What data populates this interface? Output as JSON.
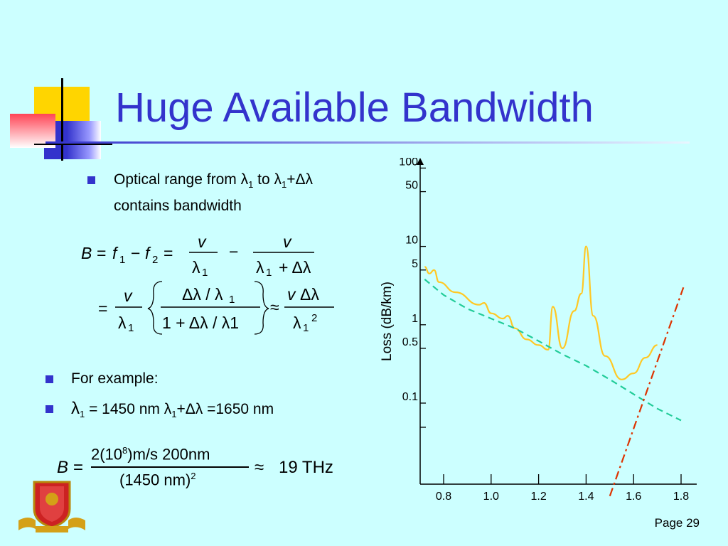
{
  "slide": {
    "title": "Huge Available Bandwidth",
    "bullet1": {
      "text_a": "Optical range from λ",
      "sub_a": "1",
      "text_b": " to λ",
      "sub_b": "1",
      "text_c": "+Δλ",
      "line2": "contains bandwidth"
    },
    "bullet2": "For example:",
    "bullet3": {
      "lambda": "λ",
      "sub": "1",
      "text_a": " = 1450 nm λ",
      "sub_b": "1",
      "text_b": "+Δλ =1650 nm"
    },
    "eq_example": {
      "lhs": "B =",
      "numerator": "2(10",
      "exp": "8",
      "numerator_rest": ")m/s 200nm",
      "denominator": "(1450 nm)",
      "den_exp": "2",
      "approx": "≈",
      "result": "19 THz"
    },
    "page_label": "Page 29",
    "colors": {
      "title": "#3333cc",
      "bullet": "#3333cc",
      "background": "#ccffff"
    }
  },
  "chart_data": {
    "type": "line",
    "xlabel": "",
    "ylabel": "Loss (dB/km)",
    "x_ticks": [
      "0.8",
      "1.0",
      "1.2",
      "1.4",
      "1.6",
      "1.8"
    ],
    "y_ticks": [
      "100",
      "50",
      "10",
      "5",
      "1",
      "0.5",
      "0.1"
    ],
    "y_scale": "log",
    "series": [
      {
        "color": "#ffc824",
        "style": "solid",
        "points": [
          [
            0.72,
            5.5
          ],
          [
            0.74,
            4.5
          ],
          [
            0.76,
            5.0
          ],
          [
            0.78,
            3.5
          ],
          [
            0.85,
            2.6
          ],
          [
            0.95,
            1.8
          ],
          [
            0.97,
            1.9
          ],
          [
            1.0,
            1.4
          ],
          [
            1.05,
            1.2
          ],
          [
            1.07,
            1.3
          ],
          [
            1.1,
            0.9
          ],
          [
            1.15,
            0.65
          ],
          [
            1.2,
            0.55
          ],
          [
            1.24,
            0.48
          ],
          [
            1.26,
            1.7
          ],
          [
            1.3,
            0.5
          ],
          [
            1.35,
            1.5
          ],
          [
            1.38,
            2.5
          ],
          [
            1.4,
            10
          ],
          [
            1.43,
            1.3
          ],
          [
            1.48,
            0.4
          ],
          [
            1.55,
            0.2
          ],
          [
            1.6,
            0.24
          ],
          [
            1.65,
            0.38
          ],
          [
            1.7,
            0.55
          ]
        ]
      },
      {
        "color": "#22cc99",
        "style": "dashed",
        "points": [
          [
            0.72,
            3.8
          ],
          [
            0.8,
            2.4
          ],
          [
            0.9,
            1.6
          ],
          [
            1.0,
            1.2
          ],
          [
            1.1,
            0.9
          ],
          [
            1.2,
            0.62
          ],
          [
            1.3,
            0.42
          ],
          [
            1.4,
            0.3
          ],
          [
            1.5,
            0.2
          ],
          [
            1.6,
            0.13
          ],
          [
            1.7,
            0.085
          ],
          [
            1.8,
            0.06
          ]
        ]
      },
      {
        "color": "#dd3300",
        "style": "dash-dot",
        "points": [
          [
            1.5,
            0.0065
          ],
          [
            1.81,
            3.0
          ]
        ]
      }
    ]
  }
}
